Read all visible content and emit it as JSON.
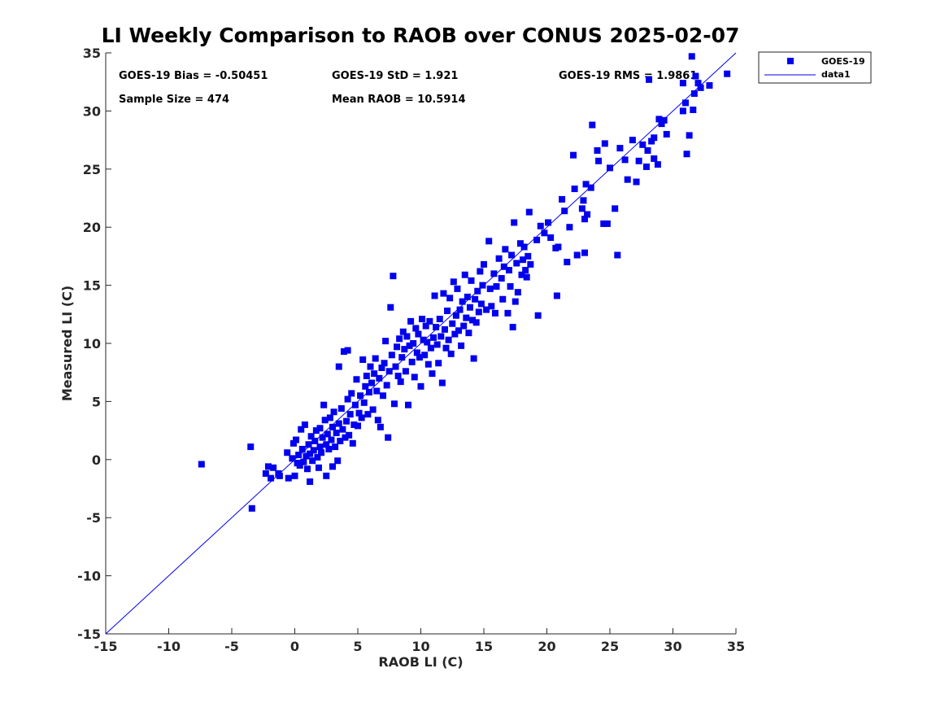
{
  "chart_data": {
    "type": "scatter",
    "title": "LI Weekly Comparison to RAOB over CONUS 2025-02-07",
    "xlabel": "RAOB LI (C)",
    "ylabel": "Measured LI (C)",
    "xlim": [
      -15,
      35
    ],
    "ylim": [
      -15,
      35
    ],
    "xticks": [
      "-15",
      "-10",
      "-5",
      "0",
      "5",
      "10",
      "15",
      "20",
      "25",
      "30",
      "35"
    ],
    "yticks": [
      "-15",
      "-10",
      "-5",
      "0",
      "5",
      "10",
      "15",
      "20",
      "25",
      "30",
      "35"
    ],
    "grid": false,
    "legend_position": "outside-top-right",
    "stats": {
      "bias": "GOES-19 Bias = -0.50451",
      "std": "GOES-19 StD = 1.921",
      "rms": "GOES-19 RMS = 1.9861",
      "sample_size": "Sample Size = 474",
      "mean_raob": "Mean RAOB = 10.5914"
    },
    "series": [
      {
        "name": "GOES-19",
        "marker": "square",
        "color": "#0000ee",
        "points": [
          [
            -7.4,
            -0.4
          ],
          [
            -3.5,
            1.1
          ],
          [
            -3.4,
            -4.2
          ],
          [
            -2.3,
            -1.2
          ],
          [
            -2.1,
            -0.6
          ],
          [
            -1.9,
            -1.6
          ],
          [
            -1.7,
            -0.7
          ],
          [
            -1.3,
            -1.2
          ],
          [
            -1.2,
            -1.4
          ],
          [
            -0.6,
            0.6
          ],
          [
            -0.5,
            -1.6
          ],
          [
            -0.2,
            0.1
          ],
          [
            -0.1,
            1.4
          ],
          [
            0.0,
            -1.4
          ],
          [
            0.1,
            1.7
          ],
          [
            0.2,
            -0.3
          ],
          [
            0.3,
            0.4
          ],
          [
            0.4,
            -0.5
          ],
          [
            0.5,
            2.6
          ],
          [
            0.6,
            0.9
          ],
          [
            0.7,
            -0.2
          ],
          [
            0.8,
            3.0
          ],
          [
            0.9,
            0.3
          ],
          [
            1.0,
            -0.8
          ],
          [
            1.1,
            1.3
          ],
          [
            1.2,
            0.5
          ],
          [
            1.2,
            -1.9
          ],
          [
            1.3,
            2.0
          ],
          [
            1.4,
            -0.1
          ],
          [
            1.5,
            0.8
          ],
          [
            1.6,
            1.6
          ],
          [
            1.7,
            2.5
          ],
          [
            1.8,
            0.2
          ],
          [
            1.9,
            -0.7
          ],
          [
            2.0,
            1.1
          ],
          [
            2.0,
            2.7
          ],
          [
            2.1,
            0.6
          ],
          [
            2.2,
            1.9
          ],
          [
            2.3,
            4.7
          ],
          [
            2.4,
            3.4
          ],
          [
            2.5,
            -1.4
          ],
          [
            2.5,
            1.3
          ],
          [
            2.6,
            2.2
          ],
          [
            2.7,
            0.9
          ],
          [
            2.8,
            3.6
          ],
          [
            2.9,
            1.7
          ],
          [
            3.0,
            -0.6
          ],
          [
            3.0,
            2.8
          ],
          [
            3.1,
            4.1
          ],
          [
            3.2,
            1.1
          ],
          [
            3.3,
            2.3
          ],
          [
            3.4,
            -0.1
          ],
          [
            3.5,
            3.1
          ],
          [
            3.5,
            8.0
          ],
          [
            3.6,
            1.6
          ],
          [
            3.7,
            4.4
          ],
          [
            3.8,
            2.6
          ],
          [
            3.9,
            9.3
          ],
          [
            4.0,
            1.9
          ],
          [
            4.1,
            3.3
          ],
          [
            4.2,
            5.2
          ],
          [
            4.2,
            9.4
          ],
          [
            4.3,
            2.1
          ],
          [
            4.4,
            3.9
          ],
          [
            4.5,
            5.7
          ],
          [
            4.6,
            1.4
          ],
          [
            4.7,
            3.0
          ],
          [
            4.8,
            4.7
          ],
          [
            4.9,
            6.9
          ],
          [
            5.0,
            2.9
          ],
          [
            5.1,
            4.0
          ],
          [
            5.2,
            5.5
          ],
          [
            5.3,
            3.6
          ],
          [
            5.4,
            8.6
          ],
          [
            5.5,
            4.9
          ],
          [
            5.6,
            6.3
          ],
          [
            5.7,
            7.2
          ],
          [
            5.8,
            3.9
          ],
          [
            5.9,
            5.8
          ],
          [
            6.0,
            8.0
          ],
          [
            6.1,
            6.6
          ],
          [
            6.2,
            4.3
          ],
          [
            6.3,
            7.4
          ],
          [
            6.4,
            8.7
          ],
          [
            6.5,
            5.9
          ],
          [
            6.6,
            3.4
          ],
          [
            6.7,
            7.0
          ],
          [
            6.8,
            2.8
          ],
          [
            6.9,
            7.9
          ],
          [
            7.0,
            5.5
          ],
          [
            7.1,
            8.3
          ],
          [
            7.2,
            10.2
          ],
          [
            7.3,
            6.4
          ],
          [
            7.4,
            1.9
          ],
          [
            7.5,
            7.6
          ],
          [
            7.6,
            13.1
          ],
          [
            7.7,
            9.0
          ],
          [
            7.8,
            15.8
          ],
          [
            7.9,
            4.8
          ],
          [
            8.0,
            8.0
          ],
          [
            8.1,
            9.7
          ],
          [
            8.2,
            7.2
          ],
          [
            8.3,
            10.4
          ],
          [
            8.4,
            6.7
          ],
          [
            8.5,
            8.8
          ],
          [
            8.6,
            11.0
          ],
          [
            8.7,
            9.5
          ],
          [
            8.8,
            7.6
          ],
          [
            8.9,
            10.6
          ],
          [
            9.0,
            4.7
          ],
          [
            9.1,
            9.8
          ],
          [
            9.2,
            11.9
          ],
          [
            9.3,
            8.4
          ],
          [
            9.4,
            10.0
          ],
          [
            9.5,
            7.1
          ],
          [
            9.6,
            11.3
          ],
          [
            9.7,
            9.2
          ],
          [
            9.8,
            10.8
          ],
          [
            9.9,
            8.8
          ],
          [
            10.0,
            6.3
          ],
          [
            10.1,
            12.1
          ],
          [
            10.2,
            10.3
          ],
          [
            10.3,
            9.0
          ],
          [
            10.4,
            11.5
          ],
          [
            10.5,
            10.1
          ],
          [
            10.6,
            8.2
          ],
          [
            10.7,
            11.9
          ],
          [
            10.8,
            9.6
          ],
          [
            10.9,
            7.4
          ],
          [
            11.0,
            10.5
          ],
          [
            11.1,
            14.1
          ],
          [
            11.2,
            11.4
          ],
          [
            11.3,
            9.9
          ],
          [
            11.4,
            8.3
          ],
          [
            11.5,
            12.1
          ],
          [
            11.6,
            10.6
          ],
          [
            11.7,
            6.6
          ],
          [
            11.8,
            14.3
          ],
          [
            11.9,
            11.2
          ],
          [
            12.0,
            9.6
          ],
          [
            12.1,
            12.8
          ],
          [
            12.2,
            10.3
          ],
          [
            12.3,
            13.9
          ],
          [
            12.4,
            9.1
          ],
          [
            12.5,
            11.7
          ],
          [
            12.6,
            15.3
          ],
          [
            12.7,
            10.8
          ],
          [
            12.8,
            12.4
          ],
          [
            12.9,
            14.7
          ],
          [
            13.0,
            11.1
          ],
          [
            13.1,
            12.9
          ],
          [
            13.2,
            9.8
          ],
          [
            13.3,
            13.6
          ],
          [
            13.4,
            11.5
          ],
          [
            13.5,
            15.9
          ],
          [
            13.6,
            12.2
          ],
          [
            13.7,
            14.0
          ],
          [
            13.8,
            10.9
          ],
          [
            13.9,
            13.1
          ],
          [
            14.0,
            15.4
          ],
          [
            14.1,
            12.0
          ],
          [
            14.2,
            8.7
          ],
          [
            14.3,
            13.8
          ],
          [
            14.4,
            11.8
          ],
          [
            14.5,
            14.5
          ],
          [
            14.6,
            12.7
          ],
          [
            14.7,
            16.2
          ],
          [
            14.8,
            13.4
          ],
          [
            14.9,
            15.0
          ],
          [
            15.0,
            16.8
          ],
          [
            15.2,
            12.9
          ],
          [
            15.4,
            18.8
          ],
          [
            15.5,
            14.7
          ],
          [
            15.6,
            13.2
          ],
          [
            15.8,
            16.0
          ],
          [
            15.9,
            12.6
          ],
          [
            16.0,
            14.9
          ],
          [
            16.2,
            17.3
          ],
          [
            16.4,
            15.6
          ],
          [
            16.5,
            13.8
          ],
          [
            16.6,
            16.6
          ],
          [
            16.7,
            18.1
          ],
          [
            16.9,
            12.6
          ],
          [
            17.0,
            16.3
          ],
          [
            17.1,
            14.9
          ],
          [
            17.2,
            17.6
          ],
          [
            17.3,
            11.4
          ],
          [
            17.4,
            20.4
          ],
          [
            17.5,
            13.6
          ],
          [
            17.6,
            16.9
          ],
          [
            17.7,
            14.4
          ],
          [
            17.9,
            18.6
          ],
          [
            18.0,
            15.9
          ],
          [
            18.1,
            17.2
          ],
          [
            18.2,
            18.3
          ],
          [
            18.3,
            16.3
          ],
          [
            18.4,
            15.7
          ],
          [
            18.5,
            17.5
          ],
          [
            18.6,
            21.3
          ],
          [
            18.7,
            16.8
          ],
          [
            19.2,
            18.9
          ],
          [
            19.3,
            12.4
          ],
          [
            19.5,
            20.1
          ],
          [
            19.8,
            19.5
          ],
          [
            20.1,
            20.4
          ],
          [
            20.3,
            19.1
          ],
          [
            20.7,
            18.2
          ],
          [
            20.8,
            14.1
          ],
          [
            20.9,
            18.3
          ],
          [
            21.2,
            22.4
          ],
          [
            21.4,
            21.4
          ],
          [
            21.6,
            17.0
          ],
          [
            21.8,
            20.0
          ],
          [
            22.1,
            26.2
          ],
          [
            22.2,
            23.3
          ],
          [
            22.4,
            17.6
          ],
          [
            22.8,
            21.6
          ],
          [
            22.9,
            22.3
          ],
          [
            23.0,
            20.7
          ],
          [
            23.0,
            17.8
          ],
          [
            23.1,
            23.7
          ],
          [
            23.2,
            21.1
          ],
          [
            23.5,
            23.4
          ],
          [
            23.6,
            28.8
          ],
          [
            24.0,
            26.6
          ],
          [
            24.1,
            25.7
          ],
          [
            24.5,
            20.3
          ],
          [
            24.6,
            27.2
          ],
          [
            24.8,
            20.3
          ],
          [
            25.0,
            25.1
          ],
          [
            25.4,
            21.6
          ],
          [
            25.6,
            17.6
          ],
          [
            25.8,
            26.8
          ],
          [
            26.2,
            25.8
          ],
          [
            26.4,
            24.1
          ],
          [
            26.8,
            27.5
          ],
          [
            27.1,
            23.9
          ],
          [
            27.3,
            25.7
          ],
          [
            27.6,
            27.1
          ],
          [
            27.9,
            25.2
          ],
          [
            28.0,
            26.6
          ],
          [
            28.1,
            32.7
          ],
          [
            28.3,
            27.4
          ],
          [
            28.5,
            25.9
          ],
          [
            28.5,
            27.7
          ],
          [
            28.8,
            25.4
          ],
          [
            28.9,
            29.3
          ],
          [
            29.1,
            28.9
          ],
          [
            29.3,
            29.2
          ],
          [
            29.5,
            28.0
          ],
          [
            30.8,
            32.4
          ],
          [
            30.8,
            30.0
          ],
          [
            31.0,
            30.7
          ],
          [
            31.1,
            26.3
          ],
          [
            31.3,
            27.9
          ],
          [
            31.5,
            34.7
          ],
          [
            31.6,
            30.1
          ],
          [
            31.7,
            31.5
          ],
          [
            31.8,
            33.0
          ],
          [
            32.0,
            32.4
          ],
          [
            32.2,
            32.0
          ],
          [
            32.9,
            32.2
          ],
          [
            34.3,
            33.2
          ]
        ]
      },
      {
        "name": "data1",
        "type": "line",
        "color": "#0000ee",
        "x": [
          -15,
          35
        ],
        "y": [
          -15,
          35
        ]
      }
    ]
  }
}
